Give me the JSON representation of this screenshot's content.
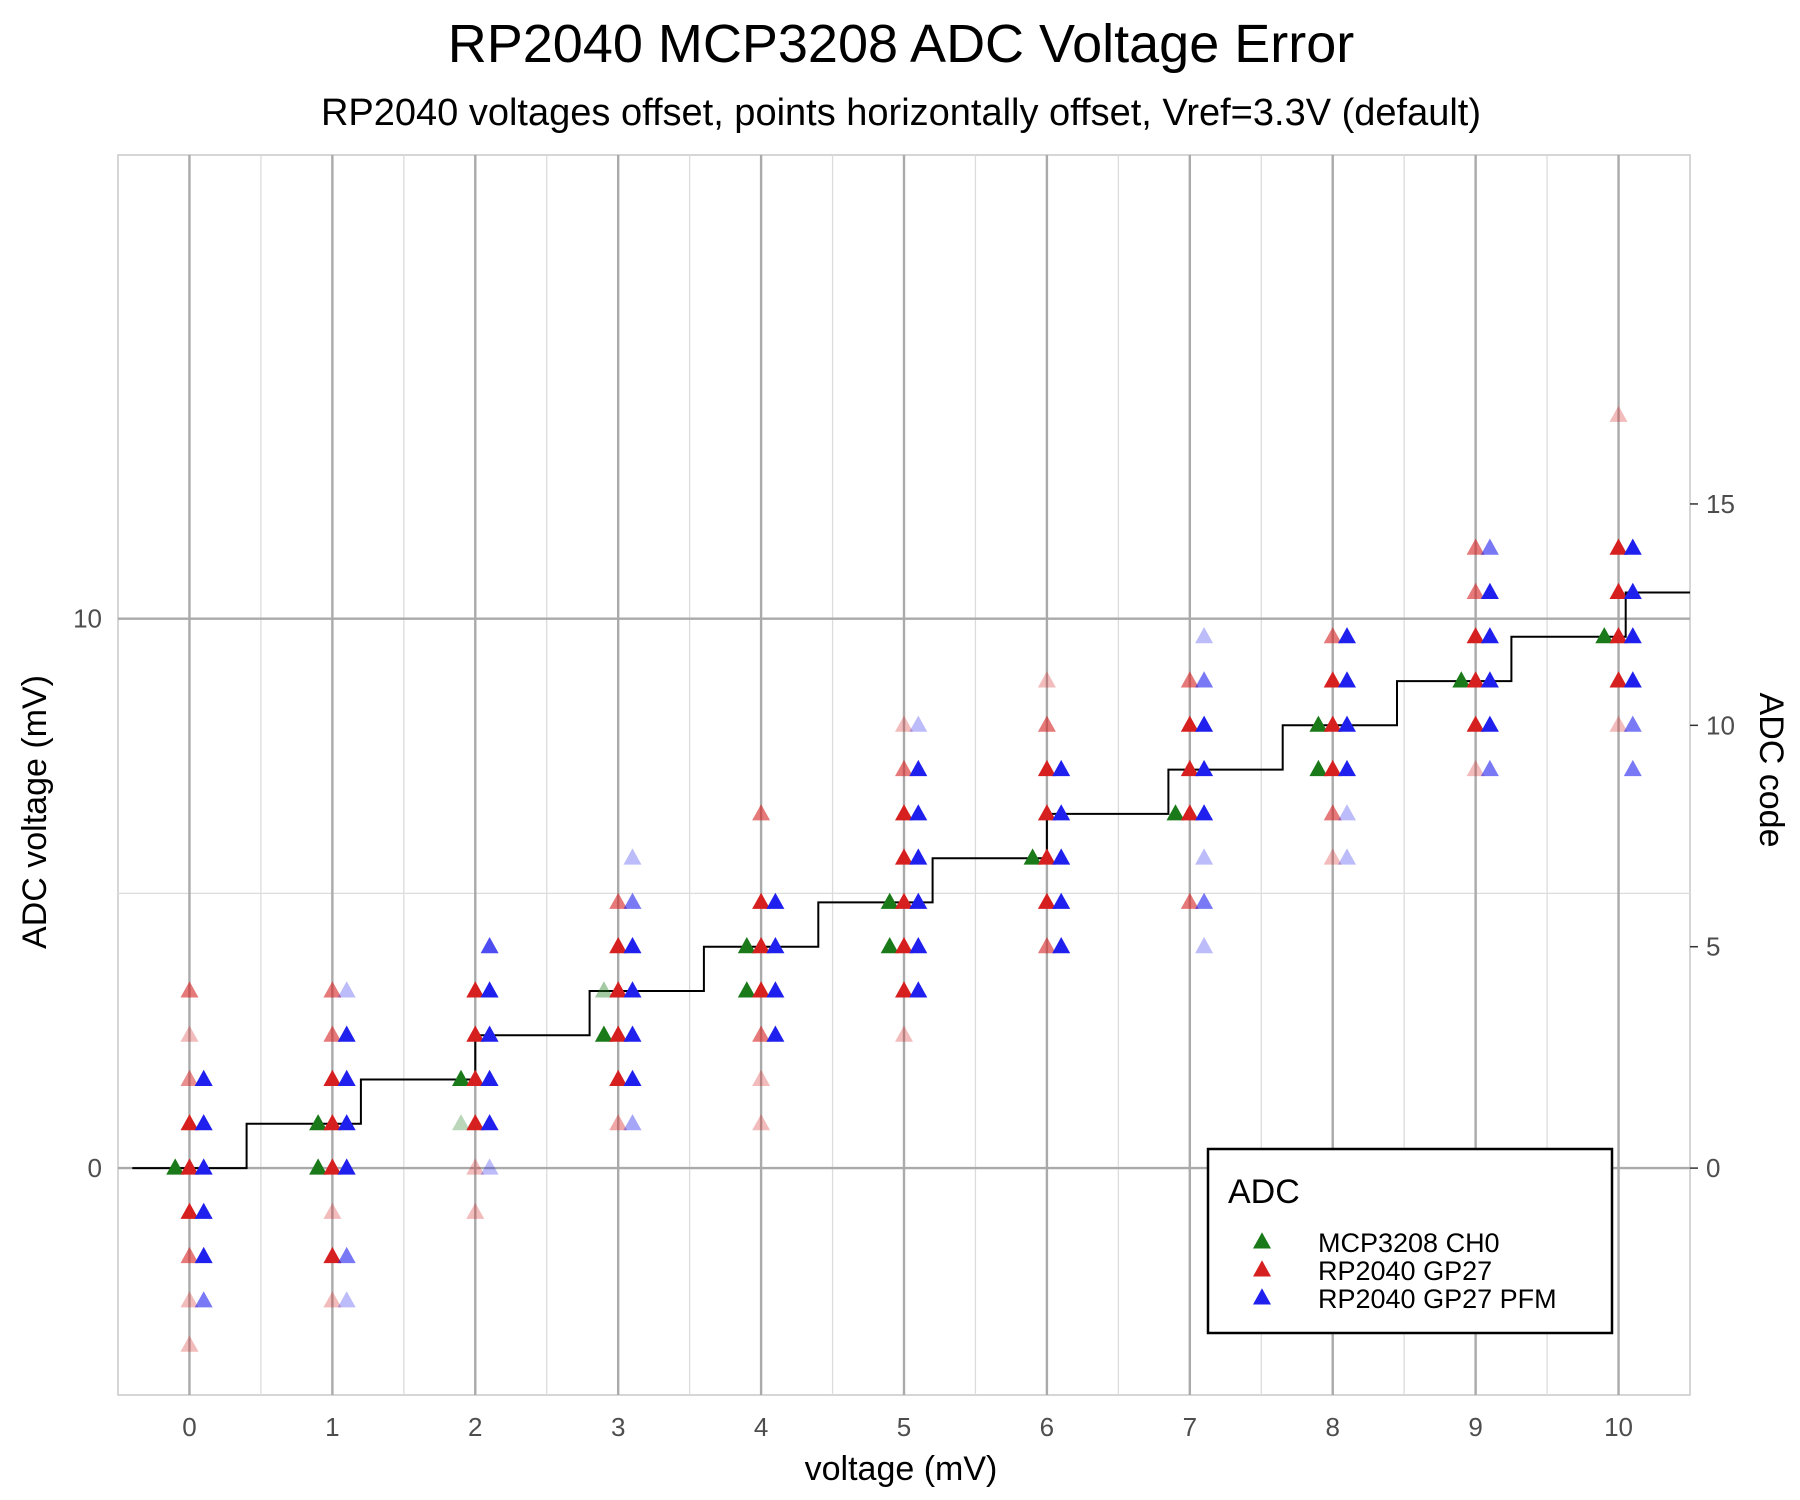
{
  "chart_data": {
    "type": "scatter",
    "title": "RP2040 MCP3208 ADC Voltage Error",
    "subtitle": "RP2040 voltages offset, points horizontally offset, Vref=3.3V (default)",
    "xlabel": "voltage (mV)",
    "ylabel": "ADC voltage (mV)",
    "y2label": "ADC code",
    "xlim": [
      -0.5,
      10.5
    ],
    "ylim": [
      -4.13,
      18.44
    ],
    "xticks": [
      0,
      1,
      2,
      3,
      4,
      5,
      6,
      7,
      8,
      9,
      10
    ],
    "yticks": [
      0,
      10
    ],
    "y2ticks": [
      0,
      5,
      10,
      15
    ],
    "y2_units_per_code": 0.8059,
    "grid": true,
    "legend": {
      "title": "ADC",
      "position": "bottom-right",
      "entries": [
        {
          "name": "MCP3208 CH0",
          "color": "#1a7a1a"
        },
        {
          "name": "RP2040 GP27",
          "color": "#d62020"
        },
        {
          "name": "RP2040 GP27 PFM",
          "color": "#2020ee"
        }
      ]
    },
    "ideal_step_line": {
      "color": "#000000",
      "points": [
        [
          -0.4,
          0
        ],
        [
          0.4,
          0
        ],
        [
          0.4,
          1
        ],
        [
          1.2,
          1
        ],
        [
          1.2,
          2
        ],
        [
          2.0,
          2
        ],
        [
          2.0,
          3
        ],
        [
          2.8,
          3
        ],
        [
          2.8,
          4
        ],
        [
          3.6,
          4
        ],
        [
          3.6,
          5
        ],
        [
          4.4,
          5
        ],
        [
          4.4,
          6
        ],
        [
          5.2,
          6
        ],
        [
          5.2,
          7
        ],
        [
          6.0,
          7
        ],
        [
          6.0,
          8
        ],
        [
          6.85,
          8
        ],
        [
          6.85,
          9
        ],
        [
          7.65,
          9
        ],
        [
          7.65,
          10
        ],
        [
          8.45,
          10
        ],
        [
          8.45,
          11
        ],
        [
          9.25,
          11
        ],
        [
          9.25,
          12
        ],
        [
          10.05,
          12
        ],
        [
          10.05,
          13
        ],
        [
          10.5,
          13
        ]
      ]
    },
    "series": [
      {
        "name": "MCP3208 CH0",
        "color": "#1a7a1a",
        "x_offset": -0.1,
        "points": [
          {
            "x": 0,
            "code": 0,
            "a": 1
          },
          {
            "x": 1,
            "code": 0,
            "a": 1
          },
          {
            "x": 1,
            "code": 1,
            "a": 1
          },
          {
            "x": 2,
            "code": 1,
            "a": 0.3
          },
          {
            "x": 2,
            "code": 2,
            "a": 1
          },
          {
            "x": 3,
            "code": 3,
            "a": 1
          },
          {
            "x": 3,
            "code": 4,
            "a": 0.4
          },
          {
            "x": 4,
            "code": 4,
            "a": 1
          },
          {
            "x": 4,
            "code": 5,
            "a": 1
          },
          {
            "x": 5,
            "code": 5,
            "a": 1
          },
          {
            "x": 5,
            "code": 6,
            "a": 1
          },
          {
            "x": 6,
            "code": 7,
            "a": 1
          },
          {
            "x": 7,
            "code": 8,
            "a": 1
          },
          {
            "x": 8,
            "code": 9,
            "a": 1
          },
          {
            "x": 8,
            "code": 10,
            "a": 1
          },
          {
            "x": 9,
            "code": 11,
            "a": 1
          },
          {
            "x": 10,
            "code": 12,
            "a": 1
          }
        ]
      },
      {
        "name": "RP2040 GP27",
        "color": "#d62020",
        "x_offset": 0,
        "points": [
          {
            "x": 0,
            "code": -4,
            "a": 0.3
          },
          {
            "x": 0,
            "code": -3,
            "a": 0.3
          },
          {
            "x": 0,
            "code": -2,
            "a": 0.6
          },
          {
            "x": 0,
            "code": -1,
            "a": 1
          },
          {
            "x": 0,
            "code": 0,
            "a": 1
          },
          {
            "x": 0,
            "code": 1,
            "a": 1
          },
          {
            "x": 0,
            "code": 2,
            "a": 0.5
          },
          {
            "x": 0,
            "code": 3,
            "a": 0.3
          },
          {
            "x": 0,
            "code": 4,
            "a": 0.6
          },
          {
            "x": 1,
            "code": -3,
            "a": 0.3
          },
          {
            "x": 1,
            "code": -2,
            "a": 1
          },
          {
            "x": 1,
            "code": -1,
            "a": 0.3
          },
          {
            "x": 1,
            "code": 0,
            "a": 1
          },
          {
            "x": 1,
            "code": 1,
            "a": 1
          },
          {
            "x": 1,
            "code": 2,
            "a": 1
          },
          {
            "x": 1,
            "code": 3,
            "a": 0.6
          },
          {
            "x": 1,
            "code": 4,
            "a": 0.6
          },
          {
            "x": 2,
            "code": -1,
            "a": 0.3
          },
          {
            "x": 2,
            "code": 0,
            "a": 0.3
          },
          {
            "x": 2,
            "code": 1,
            "a": 1
          },
          {
            "x": 2,
            "code": 2,
            "a": 1
          },
          {
            "x": 2,
            "code": 3,
            "a": 1
          },
          {
            "x": 2,
            "code": 4,
            "a": 1
          },
          {
            "x": 3,
            "code": 1,
            "a": 0.4
          },
          {
            "x": 3,
            "code": 2,
            "a": 1
          },
          {
            "x": 3,
            "code": 3,
            "a": 1
          },
          {
            "x": 3,
            "code": 4,
            "a": 1
          },
          {
            "x": 3,
            "code": 5,
            "a": 1
          },
          {
            "x": 3,
            "code": 6,
            "a": 0.6
          },
          {
            "x": 4,
            "code": 1,
            "a": 0.3
          },
          {
            "x": 4,
            "code": 2,
            "a": 0.3
          },
          {
            "x": 4,
            "code": 3,
            "a": 0.6
          },
          {
            "x": 4,
            "code": 4,
            "a": 1
          },
          {
            "x": 4,
            "code": 5,
            "a": 1
          },
          {
            "x": 4,
            "code": 6,
            "a": 1
          },
          {
            "x": 4,
            "code": 8,
            "a": 0.6
          },
          {
            "x": 5,
            "code": 3,
            "a": 0.3
          },
          {
            "x": 5,
            "code": 4,
            "a": 1
          },
          {
            "x": 5,
            "code": 5,
            "a": 1
          },
          {
            "x": 5,
            "code": 6,
            "a": 1
          },
          {
            "x": 5,
            "code": 7,
            "a": 1
          },
          {
            "x": 5,
            "code": 8,
            "a": 1
          },
          {
            "x": 5,
            "code": 9,
            "a": 0.6
          },
          {
            "x": 5,
            "code": 10,
            "a": 0.3
          },
          {
            "x": 6,
            "code": 5,
            "a": 0.6
          },
          {
            "x": 6,
            "code": 6,
            "a": 1
          },
          {
            "x": 6,
            "code": 7,
            "a": 1
          },
          {
            "x": 6,
            "code": 8,
            "a": 1
          },
          {
            "x": 6,
            "code": 9,
            "a": 1
          },
          {
            "x": 6,
            "code": 10,
            "a": 0.6
          },
          {
            "x": 6,
            "code": 11,
            "a": 0.3
          },
          {
            "x": 7,
            "code": 6,
            "a": 0.6
          },
          {
            "x": 7,
            "code": 8,
            "a": 1
          },
          {
            "x": 7,
            "code": 9,
            "a": 1
          },
          {
            "x": 7,
            "code": 10,
            "a": 1
          },
          {
            "x": 7,
            "code": 11,
            "a": 0.6
          },
          {
            "x": 8,
            "code": 7,
            "a": 0.3
          },
          {
            "x": 8,
            "code": 8,
            "a": 0.6
          },
          {
            "x": 8,
            "code": 9,
            "a": 1
          },
          {
            "x": 8,
            "code": 10,
            "a": 1
          },
          {
            "x": 8,
            "code": 11,
            "a": 1
          },
          {
            "x": 8,
            "code": 12,
            "a": 0.6
          },
          {
            "x": 9,
            "code": 9,
            "a": 0.3
          },
          {
            "x": 9,
            "code": 10,
            "a": 1
          },
          {
            "x": 9,
            "code": 11,
            "a": 1
          },
          {
            "x": 9,
            "code": 12,
            "a": 1
          },
          {
            "x": 9,
            "code": 13,
            "a": 0.6
          },
          {
            "x": 9,
            "code": 14,
            "a": 0.6
          },
          {
            "x": 10,
            "code": 10,
            "a": 0.3
          },
          {
            "x": 10,
            "code": 11,
            "a": 1
          },
          {
            "x": 10,
            "code": 12,
            "a": 1
          },
          {
            "x": 10,
            "code": 13,
            "a": 1
          },
          {
            "x": 10,
            "code": 14,
            "a": 1
          },
          {
            "x": 10,
            "code": 17,
            "a": 0.3
          }
        ]
      },
      {
        "name": "RP2040 GP27 PFM",
        "color": "#2020ee",
        "x_offset": 0.1,
        "points": [
          {
            "x": 0,
            "code": -3,
            "a": 0.6
          },
          {
            "x": 0,
            "code": -2,
            "a": 1
          },
          {
            "x": 0,
            "code": -1,
            "a": 1
          },
          {
            "x": 0,
            "code": 0,
            "a": 1
          },
          {
            "x": 0,
            "code": 1,
            "a": 1
          },
          {
            "x": 0,
            "code": 2,
            "a": 1
          },
          {
            "x": 1,
            "code": -3,
            "a": 0.3
          },
          {
            "x": 1,
            "code": -2,
            "a": 0.6
          },
          {
            "x": 1,
            "code": 0,
            "a": 1
          },
          {
            "x": 1,
            "code": 1,
            "a": 1
          },
          {
            "x": 1,
            "code": 2,
            "a": 1
          },
          {
            "x": 1,
            "code": 3,
            "a": 1
          },
          {
            "x": 1,
            "code": 4,
            "a": 0.3
          },
          {
            "x": 2,
            "code": 0,
            "a": 0.3
          },
          {
            "x": 2,
            "code": 1,
            "a": 1
          },
          {
            "x": 2,
            "code": 2,
            "a": 1
          },
          {
            "x": 2,
            "code": 3,
            "a": 1
          },
          {
            "x": 2,
            "code": 4,
            "a": 1
          },
          {
            "x": 2,
            "code": 5,
            "a": 0.8
          },
          {
            "x": 3,
            "code": 1,
            "a": 0.4
          },
          {
            "x": 3,
            "code": 2,
            "a": 1
          },
          {
            "x": 3,
            "code": 3,
            "a": 1
          },
          {
            "x": 3,
            "code": 4,
            "a": 1
          },
          {
            "x": 3,
            "code": 5,
            "a": 1
          },
          {
            "x": 3,
            "code": 6,
            "a": 0.6
          },
          {
            "x": 3,
            "code": 7,
            "a": 0.3
          },
          {
            "x": 4,
            "code": 3,
            "a": 1
          },
          {
            "x": 4,
            "code": 4,
            "a": 1
          },
          {
            "x": 4,
            "code": 5,
            "a": 1
          },
          {
            "x": 4,
            "code": 6,
            "a": 1
          },
          {
            "x": 5,
            "code": 4,
            "a": 1
          },
          {
            "x": 5,
            "code": 5,
            "a": 1
          },
          {
            "x": 5,
            "code": 6,
            "a": 1
          },
          {
            "x": 5,
            "code": 7,
            "a": 1
          },
          {
            "x": 5,
            "code": 8,
            "a": 1
          },
          {
            "x": 5,
            "code": 9,
            "a": 1
          },
          {
            "x": 5,
            "code": 10,
            "a": 0.3
          },
          {
            "x": 6,
            "code": 5,
            "a": 1
          },
          {
            "x": 6,
            "code": 6,
            "a": 1
          },
          {
            "x": 6,
            "code": 7,
            "a": 1
          },
          {
            "x": 6,
            "code": 8,
            "a": 1
          },
          {
            "x": 6,
            "code": 9,
            "a": 1
          },
          {
            "x": 7,
            "code": 5,
            "a": 0.3
          },
          {
            "x": 7,
            "code": 6,
            "a": 0.6
          },
          {
            "x": 7,
            "code": 7,
            "a": 0.3
          },
          {
            "x": 7,
            "code": 8,
            "a": 1
          },
          {
            "x": 7,
            "code": 9,
            "a": 1
          },
          {
            "x": 7,
            "code": 10,
            "a": 1
          },
          {
            "x": 7,
            "code": 11,
            "a": 0.6
          },
          {
            "x": 7,
            "code": 12,
            "a": 0.3
          },
          {
            "x": 8,
            "code": 7,
            "a": 0.3
          },
          {
            "x": 8,
            "code": 8,
            "a": 0.3
          },
          {
            "x": 8,
            "code": 9,
            "a": 1
          },
          {
            "x": 8,
            "code": 10,
            "a": 1
          },
          {
            "x": 8,
            "code": 11,
            "a": 1
          },
          {
            "x": 8,
            "code": 12,
            "a": 1
          },
          {
            "x": 9,
            "code": 9,
            "a": 0.6
          },
          {
            "x": 9,
            "code": 10,
            "a": 1
          },
          {
            "x": 9,
            "code": 11,
            "a": 1
          },
          {
            "x": 9,
            "code": 12,
            "a": 1
          },
          {
            "x": 9,
            "code": 13,
            "a": 1
          },
          {
            "x": 9,
            "code": 14,
            "a": 0.6
          },
          {
            "x": 10,
            "code": 9,
            "a": 0.6
          },
          {
            "x": 10,
            "code": 10,
            "a": 0.6
          },
          {
            "x": 10,
            "code": 11,
            "a": 1
          },
          {
            "x": 10,
            "code": 12,
            "a": 1
          },
          {
            "x": 10,
            "code": 13,
            "a": 1
          },
          {
            "x": 10,
            "code": 14,
            "a": 1
          }
        ]
      }
    ]
  }
}
